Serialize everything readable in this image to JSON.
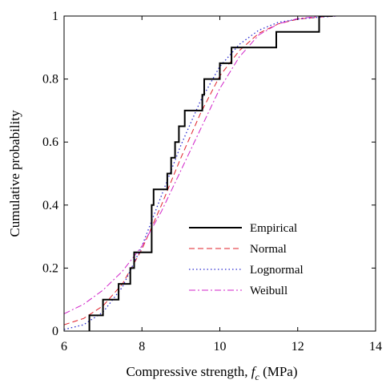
{
  "chart_data": {
    "type": "line",
    "title": "",
    "xlabel_main": "Compressive strength, ",
    "xlabel_symbol": "f",
    "xlabel_sub": "c",
    "xlabel_unit": " (MPa)",
    "ylabel": "Cumulative probability",
    "xlim": [
      6,
      14
    ],
    "ylim": [
      0,
      1
    ],
    "xticks": [
      "6",
      "8",
      "10",
      "12",
      "14"
    ],
    "yticks": [
      "0",
      "0.2",
      "0.4",
      "0.6",
      "0.8",
      "1"
    ],
    "grid": false,
    "legend_position": "bottom-right",
    "series": [
      {
        "name": "Empirical",
        "style": "solid",
        "color": "#000000",
        "step": true,
        "x": [
          6.65,
          6.65,
          7.0,
          7.0,
          7.4,
          7.4,
          7.7,
          7.7,
          7.8,
          7.8,
          8.25,
          8.25,
          8.3,
          8.3,
          8.65,
          8.65,
          8.75,
          8.75,
          8.85,
          8.85,
          8.95,
          8.95,
          9.1,
          9.1,
          9.55,
          9.55,
          9.6,
          9.6,
          10.0,
          10.0,
          10.3,
          10.3,
          11.45,
          11.45,
          12.55,
          12.55,
          12.9
        ],
        "y": [
          0.0,
          0.05,
          0.05,
          0.1,
          0.1,
          0.15,
          0.15,
          0.2,
          0.2,
          0.25,
          0.25,
          0.4,
          0.4,
          0.45,
          0.45,
          0.5,
          0.5,
          0.55,
          0.55,
          0.6,
          0.6,
          0.65,
          0.65,
          0.7,
          0.7,
          0.75,
          0.75,
          0.8,
          0.8,
          0.85,
          0.85,
          0.9,
          0.9,
          0.95,
          0.95,
          1.0,
          1.0
        ]
      },
      {
        "name": "Normal",
        "style": "dashed",
        "color": "#e0202a",
        "x": [
          6.0,
          6.5,
          7.0,
          7.5,
          8.0,
          8.5,
          9.0,
          9.5,
          10.0,
          10.5,
          11.0,
          11.5,
          12.0,
          12.5,
          13.0
        ],
        "y": [
          0.02,
          0.04,
          0.08,
          0.15,
          0.26,
          0.4,
          0.55,
          0.69,
          0.81,
          0.89,
          0.945,
          0.975,
          0.99,
          0.996,
          1.0
        ]
      },
      {
        "name": "Lognormal",
        "style": "dotted",
        "color": "#2a2ad0",
        "x": [
          6.0,
          6.5,
          7.0,
          7.5,
          8.0,
          8.5,
          9.0,
          9.5,
          10.0,
          10.5,
          11.0,
          11.5,
          12.0,
          12.5,
          13.0
        ],
        "y": [
          0.005,
          0.02,
          0.06,
          0.14,
          0.27,
          0.43,
          0.59,
          0.73,
          0.84,
          0.91,
          0.955,
          0.98,
          0.99,
          0.996,
          1.0
        ]
      },
      {
        "name": "Weibull",
        "style": "dashdot",
        "color": "#d020c8",
        "x": [
          6.0,
          6.5,
          7.0,
          7.5,
          8.0,
          8.5,
          9.0,
          9.5,
          10.0,
          10.5,
          11.0,
          11.5,
          12.0,
          12.5,
          13.0
        ],
        "y": [
          0.055,
          0.085,
          0.13,
          0.19,
          0.27,
          0.38,
          0.51,
          0.64,
          0.77,
          0.87,
          0.94,
          0.975,
          0.992,
          0.998,
          1.0
        ]
      }
    ]
  }
}
